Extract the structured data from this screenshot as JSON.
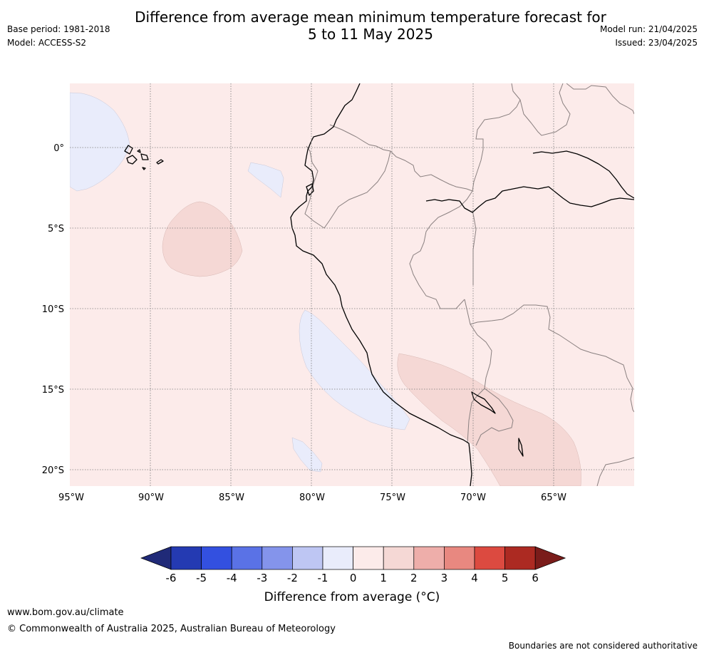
{
  "header": {
    "title_line1": "Difference from average mean minimum temperature forecast for",
    "title_line2": "5 to 11 May 2025",
    "base_period": "Base period: 1981-2018",
    "model": "Model: ACCESS-S2",
    "model_run": "Model run: 21/04/2025",
    "issued": "Issued: 23/04/2025"
  },
  "map": {
    "lon_labels": [
      "95°W",
      "90°W",
      "85°W",
      "80°W",
      "75°W",
      "70°W",
      "65°W"
    ],
    "lat_labels": [
      "0°",
      "5°S",
      "10°S",
      "15°S",
      "20°S"
    ],
    "colors": {
      "background": "#fcebea",
      "below_0_1": "#e9ecfb",
      "above_1_2": "#f5d8d5",
      "coast": "#000000",
      "border": "#8a8080",
      "grid": "#7a7a7a"
    }
  },
  "colorbar": {
    "ticks": [
      "-6",
      "-5",
      "-4",
      "-3",
      "-2",
      "-1",
      "0",
      "1",
      "2",
      "3",
      "4",
      "5",
      "6"
    ],
    "colors": [
      "#202a78",
      "#243ab2",
      "#3350e0",
      "#5a72e6",
      "#8494eb",
      "#bec6f3",
      "#e9ecfb",
      "#fcebea",
      "#f5d8d5",
      "#eeaeaa",
      "#e88880",
      "#dc4a40",
      "#ac2a22",
      "#7a1c1a"
    ],
    "label": "Difference from average (°C)"
  },
  "footer": {
    "url": "www.bom.gov.au/climate",
    "copyright": "© Commonwealth of Australia 2025, Australian Bureau of Meteorology",
    "note": "Boundaries are not considered authoritative"
  }
}
